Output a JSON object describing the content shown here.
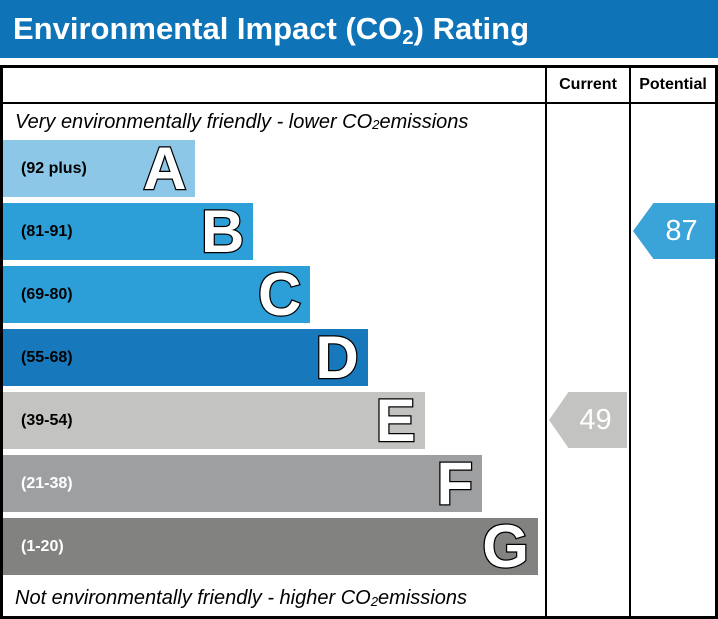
{
  "title": {
    "pre": "Environmental Impact (CO",
    "sub": "2",
    "post": ") Rating"
  },
  "table": {
    "current_header": "Current",
    "potential_header": "Potential"
  },
  "captions": {
    "top": {
      "pre": "Very environmentally friendly - lower CO",
      "sub": "2",
      "post": " emissions"
    },
    "bottom": {
      "pre": "Not environmentally friendly - higher CO",
      "sub": "2",
      "post": " emissions"
    }
  },
  "bands": [
    {
      "letter": "A",
      "range": "(92 plus)",
      "color": "#8cc7e8",
      "text_color": "#000000",
      "width_pct": 35.5
    },
    {
      "letter": "B",
      "range": "(81-91)",
      "color": "#2d9fd8",
      "text_color": "#000000",
      "width_pct": 46.2
    },
    {
      "letter": "C",
      "range": "(69-80)",
      "color": "#2d9fd8",
      "text_color": "#000000",
      "width_pct": 56.7
    },
    {
      "letter": "D",
      "range": "(55-68)",
      "color": "#1878bc",
      "text_color": "#000000",
      "width_pct": 67.3
    },
    {
      "letter": "E",
      "range": "(39-54)",
      "color": "#c3c3c1",
      "text_color": "#000000",
      "width_pct": 77.8
    },
    {
      "letter": "F",
      "range": "(21-38)",
      "color": "#9d9fa1",
      "text_color": "#ffffff",
      "width_pct": 88.4
    },
    {
      "letter": "G",
      "range": "(1-20)",
      "color": "#828280",
      "text_color": "#ffffff",
      "width_pct": 98.7
    }
  ],
  "current": {
    "value": "49",
    "band_index": 4,
    "arrow_color": "#c3c3c1",
    "value_color": "#ffffff"
  },
  "potential": {
    "value": "87",
    "band_index": 1,
    "arrow_color": "#3aa3d8",
    "value_color": "#ffffff"
  },
  "theme": {
    "title_bar_blue": "#0e73b7",
    "border_black": "#000000"
  },
  "chart_data": {
    "type": "bar",
    "title": "Environmental Impact (CO2) Rating",
    "categories": [
      "A",
      "B",
      "C",
      "D",
      "E",
      "F",
      "G"
    ],
    "band_ranges": [
      "92 plus",
      "81-91",
      "69-80",
      "55-68",
      "39-54",
      "21-38",
      "1-20"
    ],
    "bar_lengths_pct_of_column": [
      35.5,
      46.2,
      56.7,
      67.3,
      77.8,
      88.4,
      98.7
    ],
    "band_colors": [
      "#8cc7e8",
      "#2d9fd8",
      "#2d9fd8",
      "#1878bc",
      "#c3c3c1",
      "#9d9fa1",
      "#828280"
    ],
    "columns": [
      "Current",
      "Potential"
    ],
    "current": {
      "value": 49,
      "band": "E"
    },
    "potential": {
      "value": 87,
      "band": "B"
    },
    "annotations": [
      "Very environmentally friendly - lower CO2 emissions",
      "Not environmentally friendly - higher CO2 emissions"
    ],
    "legend_position": "none",
    "grid": false
  }
}
